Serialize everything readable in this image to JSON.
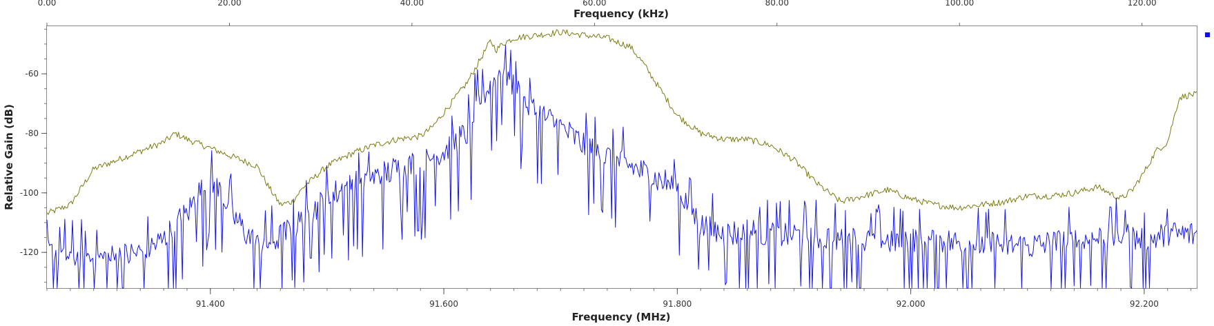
{
  "chart_data": {
    "type": "line",
    "title": "",
    "top_axis": {
      "label": "Frequency (kHz)",
      "range": [
        0,
        126
      ],
      "ticks": [
        0,
        20,
        40,
        60,
        80,
        100,
        120
      ],
      "tick_labels": [
        "0.00",
        "20.00",
        "40.00",
        "60.00",
        "80.00",
        "100.00",
        "120.00"
      ]
    },
    "bottom_axis": {
      "label": "Frequency (MHz)",
      "range": [
        91.26,
        92.245
      ],
      "ticks": [
        91.4,
        91.6,
        91.8,
        92.0,
        92.2
      ],
      "tick_labels": [
        "91.400",
        "91.600",
        "91.800",
        "92.000",
        "92.200"
      ],
      "minor_step": 0.02
    },
    "y_axis": {
      "label": "Relative Gain (dB)",
      "range": [
        -132,
        -44
      ],
      "ticks": [
        -60,
        -80,
        -100,
        -120
      ],
      "tick_labels": [
        "-60",
        "-80",
        "-100",
        "-120"
      ],
      "minor_step": 5
    },
    "grid": false,
    "legend": {
      "placement": "top-right"
    },
    "series": [
      {
        "color": "#7a7a10",
        "style": "max-hold",
        "x": [
          91.26,
          91.28,
          91.3,
          91.32,
          91.34,
          91.36,
          91.37,
          91.38,
          91.4,
          91.42,
          91.44,
          91.45,
          91.46,
          91.47,
          91.48,
          91.5,
          91.52,
          91.54,
          91.56,
          91.58,
          91.59,
          91.6,
          91.62,
          91.64,
          91.645,
          91.65,
          91.66,
          91.68,
          91.7,
          91.72,
          91.74,
          91.76,
          91.77,
          91.78,
          91.8,
          91.82,
          91.84,
          91.86,
          91.88,
          91.9,
          91.92,
          91.94,
          91.96,
          91.98,
          92.0,
          92.02,
          92.04,
          92.06,
          92.08,
          92.1,
          92.12,
          92.14,
          92.16,
          92.18,
          92.19,
          92.2,
          92.21,
          92.22,
          92.23,
          92.24
        ],
        "y": [
          -107,
          -104,
          -92,
          -89,
          -86,
          -83,
          -80,
          -82,
          -85,
          -88,
          -91,
          -98,
          -104,
          -103,
          -98,
          -91,
          -87,
          -84,
          -82,
          -81,
          -78,
          -73,
          -63,
          -49,
          -52,
          -50,
          -48,
          -47,
          -46,
          -47,
          -48,
          -51,
          -56,
          -62,
          -74,
          -80,
          -82,
          -82,
          -84,
          -89,
          -97,
          -103,
          -101,
          -99,
          -102,
          -104,
          -105,
          -104,
          -103,
          -101,
          -101,
          -100,
          -98,
          -102,
          -99,
          -93,
          -86,
          -83,
          -68,
          -67
        ]
      },
      {
        "color": "#1515e6",
        "style": "live",
        "x": [
          91.26,
          91.28,
          91.3,
          91.32,
          91.34,
          91.36,
          91.37,
          91.38,
          91.39,
          91.4,
          91.41,
          91.42,
          91.44,
          91.46,
          91.48,
          91.5,
          91.52,
          91.54,
          91.56,
          91.58,
          91.6,
          91.62,
          91.63,
          91.64,
          91.65,
          91.66,
          91.67,
          91.68,
          91.7,
          91.72,
          91.74,
          91.76,
          91.78,
          91.8,
          91.82,
          91.84,
          91.86,
          91.88,
          91.9,
          91.95,
          92.0,
          92.05,
          92.1,
          92.15,
          92.18,
          92.2,
          92.22,
          92.24
        ],
        "y": [
          -120,
          -121,
          -122,
          -122,
          -120,
          -116,
          -111,
          -107,
          -100,
          -97,
          -100,
          -108,
          -118,
          -115,
          -109,
          -102,
          -97,
          -95,
          -92,
          -90,
          -86,
          -80,
          -69,
          -64,
          -58,
          -64,
          -70,
          -73,
          -78,
          -84,
          -88,
          -91,
          -95,
          -98,
          -111,
          -114,
          -113,
          -114,
          -114,
          -116,
          -116,
          -117,
          -118,
          -116,
          -114,
          -116,
          -114,
          -114
        ]
      }
    ]
  }
}
